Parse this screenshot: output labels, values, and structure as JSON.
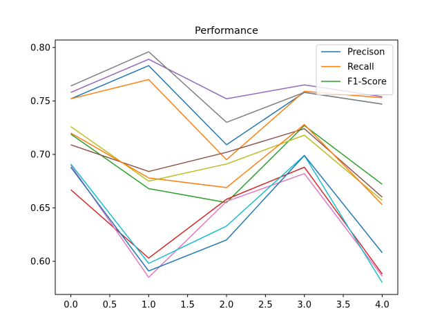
{
  "chart_data": {
    "type": "line",
    "title": "Performance",
    "xlabel": "",
    "ylabel": "",
    "x": [
      0,
      1,
      2,
      3,
      4
    ],
    "xlim": [
      -0.2,
      4.2
    ],
    "ylim": [
      0.569,
      0.807
    ],
    "xticks": [
      0.0,
      0.5,
      1.0,
      1.5,
      2.0,
      2.5,
      3.0,
      3.5,
      4.0
    ],
    "xtick_labels": [
      "0.0",
      "0.5",
      "1.0",
      "1.5",
      "2.0",
      "2.5",
      "3.0",
      "3.5",
      "4.0"
    ],
    "yticks": [
      0.6,
      0.65,
      0.7,
      0.75,
      0.8
    ],
    "ytick_labels": [
      "0.60",
      "0.65",
      "0.70",
      "0.75",
      "0.80"
    ],
    "grid": false,
    "legend_position": "top-right",
    "series": [
      {
        "name": "Precison",
        "color": "#1f77b4",
        "values": [
          0.752,
          0.783,
          0.709,
          0.758,
          0.747
        ]
      },
      {
        "name": "Recall",
        "color": "#ff7f0e",
        "values": [
          0.752,
          0.77,
          0.695,
          0.759,
          0.753
        ]
      },
      {
        "name": "F1-Score",
        "color": "#2ca02c",
        "values": [
          0.719,
          0.668,
          0.655,
          0.727,
          0.672
        ]
      },
      {
        "color": "#d62728",
        "values": [
          0.667,
          0.603,
          0.658,
          0.688,
          0.588
        ]
      },
      {
        "color": "#9467bd",
        "values": [
          0.758,
          0.789,
          0.752,
          0.765,
          0.754
        ]
      },
      {
        "color": "#8c564b",
        "values": [
          0.709,
          0.684,
          0.702,
          0.724,
          0.66
        ]
      },
      {
        "color": "#e377c2",
        "values": [
          0.69,
          0.585,
          0.656,
          0.682,
          0.586
        ]
      },
      {
        "color": "#7f7f7f",
        "values": [
          0.764,
          0.796,
          0.73,
          0.758,
          0.747
        ]
      },
      {
        "color": "#bcbd22",
        "values": [
          0.726,
          0.675,
          0.691,
          0.718,
          0.657
        ]
      },
      {
        "color": "#17becf",
        "values": [
          0.691,
          0.598,
          0.633,
          0.699,
          0.58
        ]
      },
      {
        "color": "#1f77b4",
        "values": [
          0.688,
          0.591,
          0.62,
          0.699,
          0.608
        ]
      },
      {
        "color": "#ff7f0e",
        "values": [
          0.72,
          0.678,
          0.669,
          0.728,
          0.653
        ]
      }
    ]
  }
}
